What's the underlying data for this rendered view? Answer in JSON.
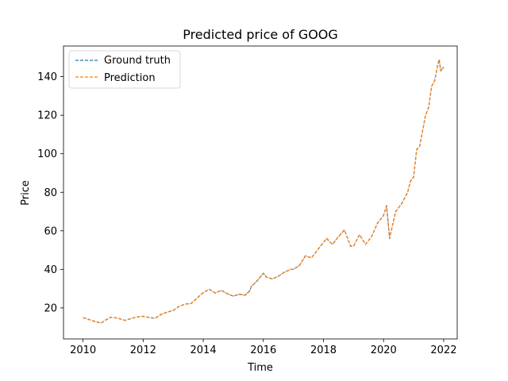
{
  "chart_data": {
    "type": "line",
    "title": "Predicted price of GOOG",
    "xlabel": "Time",
    "ylabel": "Price",
    "xlim": [
      2009.35,
      2022.45
    ],
    "ylim": [
      3.9,
      155.9
    ],
    "x_ticks": [
      2010,
      2012,
      2014,
      2016,
      2018,
      2020,
      2022
    ],
    "x_tick_labels": [
      "2010",
      "2012",
      "2014",
      "2016",
      "2018",
      "2020",
      "2022"
    ],
    "y_ticks": [
      20,
      40,
      60,
      80,
      100,
      120,
      140
    ],
    "y_tick_labels": [
      "20",
      "40",
      "60",
      "80",
      "100",
      "120",
      "140"
    ],
    "grid": false,
    "legend_position": "top-left",
    "series": [
      {
        "name": "Ground truth",
        "color": "#1f77b4",
        "style": "dashed",
        "x": [
          2010.0,
          2010.2,
          2010.4,
          2010.6,
          2010.75,
          2010.9,
          2011.0,
          2011.2,
          2011.4,
          2011.6,
          2011.8,
          2012.0,
          2012.2,
          2012.4,
          2012.6,
          2012.8,
          2013.0,
          2013.2,
          2013.4,
          2013.6,
          2013.8,
          2014.0,
          2014.2,
          2014.4,
          2014.6,
          2014.8,
          2015.0,
          2015.2,
          2015.4,
          2015.55,
          2015.6,
          2015.8,
          2016.0,
          2016.1,
          2016.3,
          2016.5,
          2016.7,
          2016.9,
          2017.0,
          2017.2,
          2017.4,
          2017.6,
          2017.8,
          2018.0,
          2018.1,
          2018.3,
          2018.5,
          2018.7,
          2018.9,
          2019.0,
          2019.2,
          2019.4,
          2019.6,
          2019.8,
          2020.0,
          2020.1,
          2020.2,
          2020.4,
          2020.6,
          2020.8,
          2020.9,
          2021.0,
          2021.1,
          2021.2,
          2021.4,
          2021.5,
          2021.6,
          2021.7,
          2021.8,
          2021.85,
          2021.9,
          2022.0
        ],
        "values": [
          14.9,
          14.0,
          12.9,
          12.1,
          13.7,
          15.0,
          15.2,
          14.5,
          13.5,
          14.5,
          15.3,
          15.7,
          15.0,
          14.6,
          16.7,
          17.8,
          18.7,
          20.8,
          22.0,
          22.3,
          25.2,
          27.9,
          29.7,
          27.7,
          29.1,
          27.3,
          26.1,
          27.1,
          26.6,
          29.0,
          31.0,
          34.2,
          38.0,
          36.0,
          35.0,
          36.5,
          38.5,
          40.0,
          40.0,
          42.0,
          47.0,
          46.0,
          50.0,
          54.0,
          56.0,
          53.0,
          57.0,
          60.5,
          52.0,
          52.0,
          58.0,
          53.0,
          57.0,
          64.0,
          68.0,
          73.0,
          56.0,
          70.0,
          74.0,
          80.0,
          86.0,
          88.0,
          102.0,
          104.0,
          120.0,
          124.0,
          135.0,
          138.0,
          146.0,
          149.0,
          143.0,
          145.0
        ]
      },
      {
        "name": "Prediction",
        "color": "#ff7f0e",
        "style": "dashed",
        "x": [
          2010.0,
          2010.2,
          2010.4,
          2010.6,
          2010.75,
          2010.9,
          2011.0,
          2011.2,
          2011.4,
          2011.6,
          2011.8,
          2012.0,
          2012.2,
          2012.4,
          2012.6,
          2012.8,
          2013.0,
          2013.2,
          2013.4,
          2013.6,
          2013.8,
          2014.0,
          2014.2,
          2014.4,
          2014.6,
          2014.8,
          2015.0,
          2015.2,
          2015.4,
          2015.55,
          2015.6,
          2015.8,
          2016.0,
          2016.1,
          2016.3,
          2016.5,
          2016.7,
          2016.9,
          2017.0,
          2017.2,
          2017.4,
          2017.6,
          2017.8,
          2018.0,
          2018.1,
          2018.3,
          2018.5,
          2018.7,
          2018.9,
          2019.0,
          2019.2,
          2019.4,
          2019.6,
          2019.8,
          2020.0,
          2020.1,
          2020.2,
          2020.4,
          2020.6,
          2020.8,
          2020.9,
          2021.0,
          2021.1,
          2021.2,
          2021.4,
          2021.5,
          2021.6,
          2021.7,
          2021.8,
          2021.85,
          2021.9,
          2022.0
        ],
        "values": [
          15.0,
          13.9,
          13.0,
          12.2,
          13.6,
          15.1,
          15.1,
          14.4,
          13.6,
          14.4,
          15.4,
          15.6,
          15.1,
          14.7,
          16.6,
          17.9,
          18.6,
          20.9,
          21.9,
          22.4,
          25.1,
          28.0,
          29.6,
          27.8,
          29.0,
          27.4,
          26.2,
          27.0,
          26.7,
          28.8,
          31.2,
          34.0,
          38.1,
          35.9,
          35.1,
          36.4,
          38.6,
          39.9,
          40.1,
          41.9,
          47.1,
          45.9,
          50.1,
          53.9,
          56.2,
          52.9,
          57.1,
          60.3,
          52.2,
          51.9,
          58.1,
          53.1,
          56.9,
          64.2,
          67.8,
          73.2,
          56.3,
          69.8,
          74.2,
          79.8,
          86.2,
          87.8,
          102.3,
          103.8,
          120.2,
          123.8,
          135.2,
          137.8,
          146.3,
          148.7,
          143.3,
          144.8
        ]
      }
    ]
  }
}
